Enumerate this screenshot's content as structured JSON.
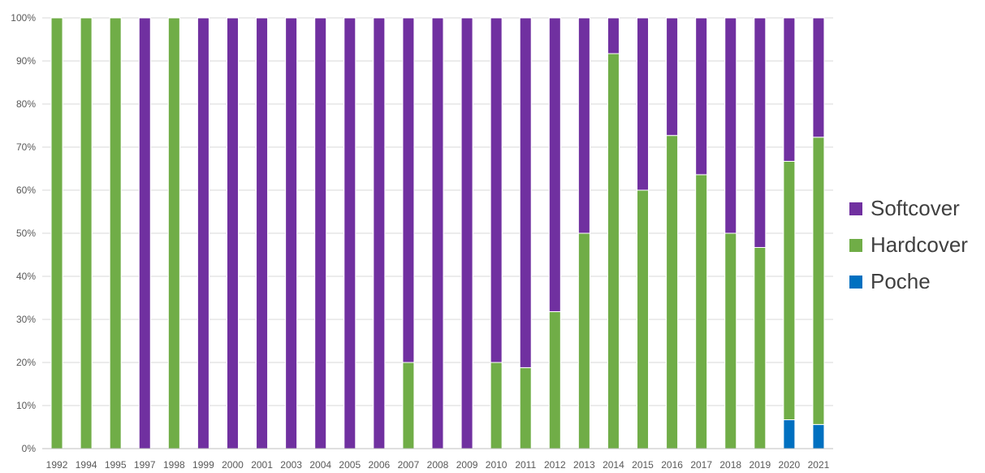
{
  "chart_data": {
    "type": "bar",
    "stacked": true,
    "percent_stacked": true,
    "title": "",
    "xlabel": "",
    "ylabel": "",
    "ylim": [
      0,
      100
    ],
    "y_tick_format": "percent",
    "y_ticks": [
      "0%",
      "10%",
      "20%",
      "30%",
      "40%",
      "50%",
      "60%",
      "70%",
      "80%",
      "90%",
      "100%"
    ],
    "grid": true,
    "legend_position": "right",
    "categories": [
      "1992",
      "1994",
      "1995",
      "1997",
      "1998",
      "1999",
      "2000",
      "2001",
      "2003",
      "2004",
      "2005",
      "2006",
      "2007",
      "2008",
      "2009",
      "2010",
      "2011",
      "2012",
      "2013",
      "2014",
      "2015",
      "2016",
      "2017",
      "2018",
      "2019",
      "2020",
      "2021"
    ],
    "series": [
      {
        "name": "Poche",
        "color": "#0070C0",
        "values": [
          0,
          0,
          0,
          0,
          0,
          0,
          0,
          0,
          0,
          0,
          0,
          0,
          0,
          0,
          0,
          0,
          0,
          0,
          0,
          0,
          0,
          0,
          0,
          0,
          0,
          6.7,
          5.6
        ]
      },
      {
        "name": "Hardcover",
        "color": "#70AD47",
        "values": [
          100,
          100,
          100,
          0,
          100,
          0,
          0,
          0,
          0,
          0,
          0,
          0,
          20,
          0,
          0,
          20,
          18.8,
          31.8,
          50,
          91.7,
          60,
          72.7,
          63.6,
          50,
          46.7,
          60,
          66.7
        ]
      },
      {
        "name": "Softcover",
        "color": "#7030A0",
        "values": [
          0,
          0,
          0,
          100,
          0,
          100,
          100,
          100,
          100,
          100,
          100,
          100,
          80,
          100,
          100,
          80,
          81.2,
          68.2,
          50,
          8.3,
          40,
          27.3,
          36.4,
          50,
          53.3,
          33.3,
          27.7
        ]
      }
    ],
    "legend": [
      {
        "name": "Softcover",
        "color": "#7030A0"
      },
      {
        "name": "Hardcover",
        "color": "#70AD47"
      },
      {
        "name": "Poche",
        "color": "#0070C0"
      }
    ]
  }
}
